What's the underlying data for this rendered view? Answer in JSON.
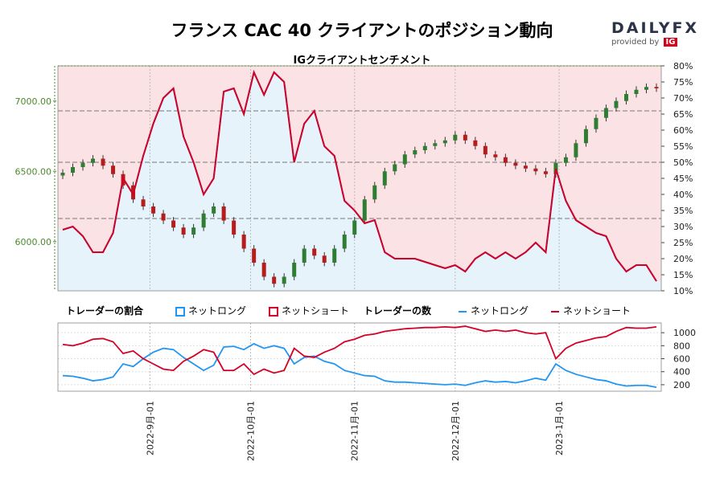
{
  "header": {
    "title": "フランス CAC 40 クライアントのポジション動向",
    "subtitle": "IGクライアントセンチメント"
  },
  "logo": {
    "text": "DAILYFX",
    "provided_by": "provided by",
    "ig": "IG"
  },
  "legend": {
    "ratio_header": "トレーダーの割合",
    "ratio_long": "ネットロング",
    "ratio_short": "ネットショート",
    "count_header": "トレーダーの数",
    "count_long": "ネットロング",
    "count_short": "ネットショート"
  },
  "colors": {
    "long": "#2196f3",
    "short": "#d50025",
    "short_bg": "#fbe3e5",
    "long_bg": "#e6f3fb",
    "up_candle": "#2e7d32",
    "down_candle": "#b71c1c",
    "price_axis": "#4a8a2a"
  },
  "chart_data": [
    {
      "type": "line",
      "title": "フランス CAC 40 クライアントのポジション動向",
      "subtitle": "IGクライアントセンチメント",
      "x": [
        "2022-08-06",
        "2022-08-09",
        "2022-08-12",
        "2022-08-15",
        "2022-08-18",
        "2022-08-21",
        "2022-08-24",
        "2022-08-27",
        "2022-08-30",
        "2022-09-02",
        "2022-09-05",
        "2022-09-08",
        "2022-09-11",
        "2022-09-14",
        "2022-09-17",
        "2022-09-20",
        "2022-09-23",
        "2022-09-26",
        "2022-09-29",
        "2022-10-02",
        "2022-10-05",
        "2022-10-08",
        "2022-10-11",
        "2022-10-14",
        "2022-10-17",
        "2022-10-20",
        "2022-10-23",
        "2022-10-26",
        "2022-10-29",
        "2022-11-01",
        "2022-11-04",
        "2022-11-07",
        "2022-11-10",
        "2022-11-13",
        "2022-11-16",
        "2022-11-19",
        "2022-11-22",
        "2022-11-25",
        "2022-11-28",
        "2022-12-01",
        "2022-12-04",
        "2022-12-07",
        "2022-12-10",
        "2022-12-13",
        "2022-12-16",
        "2022-12-19",
        "2022-12-22",
        "2022-12-25",
        "2022-12-28",
        "2022-12-31",
        "2023-01-03",
        "2023-01-06",
        "2023-01-09",
        "2023-01-12",
        "2023-01-15",
        "2023-01-18",
        "2023-01-21",
        "2023-01-24",
        "2023-01-27",
        "2023-01-30"
      ],
      "close": [
        6490,
        6530,
        6560,
        6590,
        6540,
        6480,
        6400,
        6300,
        6250,
        6200,
        6150,
        6100,
        6050,
        6100,
        6200,
        6250,
        6150,
        6050,
        5950,
        5850,
        5750,
        5700,
        5750,
        5850,
        5950,
        5900,
        5850,
        5950,
        6050,
        6150,
        6300,
        6400,
        6500,
        6550,
        6620,
        6650,
        6680,
        6700,
        6720,
        6760,
        6720,
        6680,
        6620,
        6600,
        6560,
        6540,
        6520,
        6500,
        6480,
        6560,
        6600,
        6700,
        6800,
        6880,
        6950,
        7000,
        7050,
        7080,
        7100,
        7090
      ],
      "long_pct": [
        29,
        30,
        27,
        22,
        22,
        28,
        45,
        40,
        52,
        62,
        70,
        73,
        58,
        50,
        40,
        45,
        72,
        73,
        65,
        78,
        71,
        78,
        75,
        50,
        62,
        66,
        55,
        52,
        38,
        35,
        31,
        32,
        22,
        20,
        20,
        20,
        19,
        18,
        17,
        18,
        16,
        20,
        22,
        20,
        22,
        20,
        22,
        25,
        22,
        48,
        38,
        32,
        30,
        28,
        27,
        20,
        16,
        18,
        18,
        13
      ],
      "short_pct": [
        71,
        70,
        73,
        78,
        78,
        72,
        55,
        60,
        48,
        38,
        30,
        27,
        42,
        50,
        60,
        55,
        28,
        27,
        35,
        22,
        29,
        22,
        25,
        50,
        38,
        34,
        45,
        48,
        62,
        65,
        69,
        68,
        78,
        80,
        80,
        80,
        81,
        82,
        83,
        82,
        84,
        80,
        78,
        80,
        78,
        80,
        78,
        75,
        78,
        52,
        62,
        68,
        70,
        72,
        73,
        80,
        84,
        82,
        82,
        87
      ],
      "long_count": [
        340,
        330,
        300,
        260,
        280,
        320,
        520,
        480,
        600,
        700,
        760,
        740,
        620,
        520,
        420,
        500,
        780,
        790,
        740,
        830,
        760,
        800,
        760,
        520,
        620,
        640,
        560,
        520,
        420,
        380,
        340,
        330,
        260,
        240,
        240,
        230,
        220,
        210,
        200,
        210,
        190,
        230,
        260,
        240,
        250,
        230,
        260,
        300,
        270,
        520,
        420,
        360,
        320,
        280,
        260,
        210,
        180,
        190,
        190,
        160
      ],
      "short_count": [
        820,
        800,
        840,
        900,
        910,
        860,
        680,
        720,
        600,
        520,
        440,
        420,
        560,
        640,
        740,
        700,
        420,
        420,
        520,
        360,
        440,
        380,
        420,
        760,
        640,
        620,
        700,
        760,
        860,
        900,
        960,
        980,
        1020,
        1040,
        1060,
        1070,
        1080,
        1080,
        1090,
        1080,
        1100,
        1060,
        1020,
        1040,
        1020,
        1040,
        1000,
        980,
        1000,
        600,
        760,
        840,
        880,
        920,
        940,
        1020,
        1080,
        1070,
        1070,
        1090
      ],
      "price_ylim": [
        5650,
        7250
      ],
      "price_ticks": [
        "7000.00",
        "6500.00",
        "6000.00"
      ],
      "pct_ticks": [
        "80%",
        "75%",
        "70%",
        "65%",
        "60%",
        "55%",
        "50%",
        "45%",
        "40%",
        "35%",
        "30%",
        "25%",
        "20%",
        "15%",
        "10%"
      ],
      "count_ticks": [
        "1000",
        "800",
        "600",
        "400",
        "200"
      ],
      "x_ticks": [
        "2022-9月-01",
        "2022-10月-01",
        "2022-11月-01",
        "2022-12月-01",
        "2023-1月-01"
      ]
    }
  ]
}
